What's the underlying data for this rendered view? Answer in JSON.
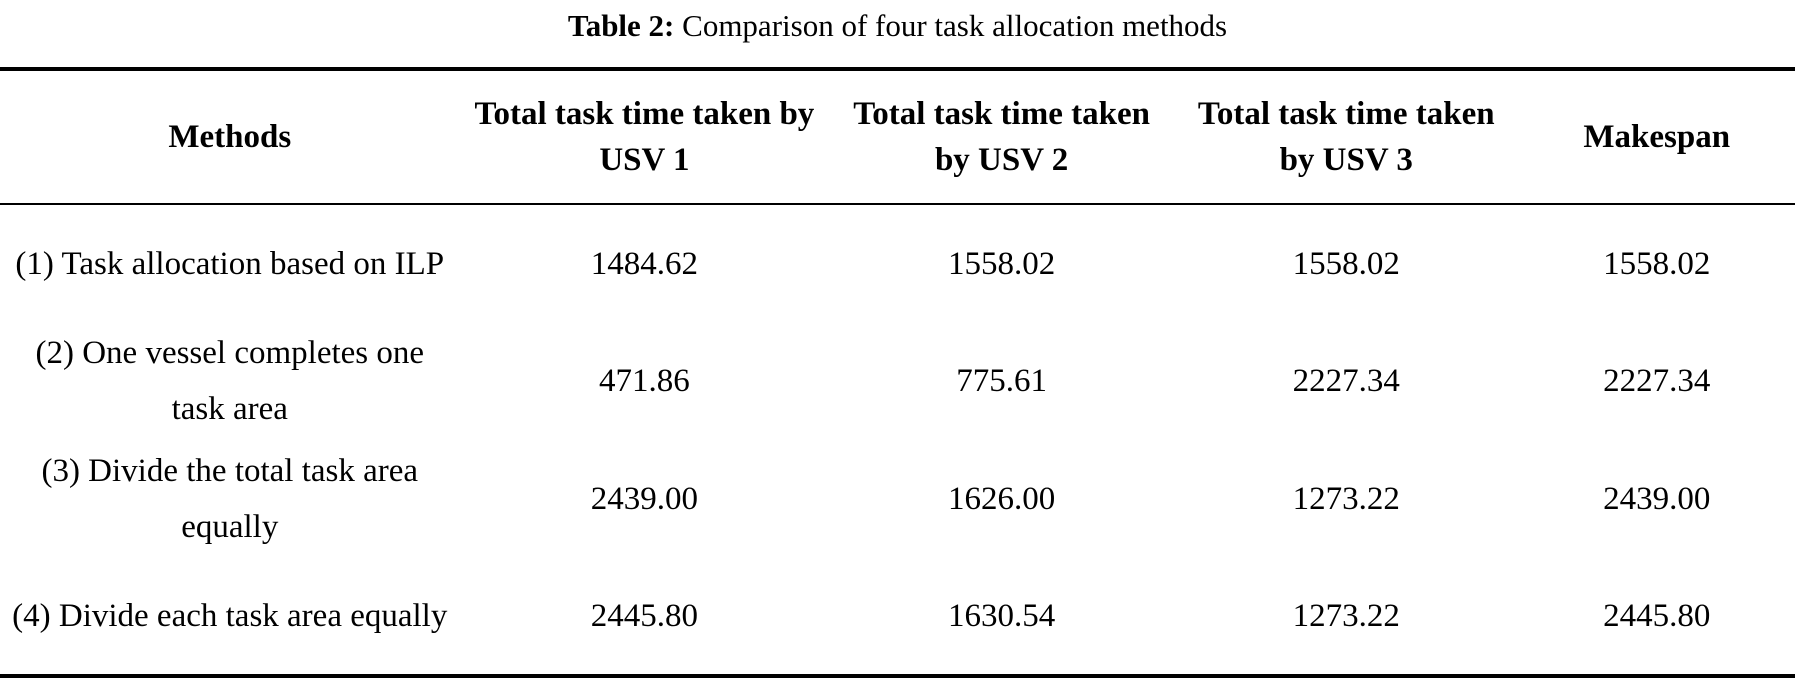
{
  "caption": {
    "label": "Table 2:",
    "text": "Comparison of four task allocation methods"
  },
  "table": {
    "columns": [
      "Methods",
      "Total task time taken by USV 1",
      "Total task time taken by USV 2",
      "Total task time taken by USV 3",
      "Makespan"
    ],
    "rows": [
      {
        "method": "(1) Task allocation based on ILP",
        "usv1": "1484.62",
        "usv2": "1558.02",
        "usv3": "1558.02",
        "makespan": "1558.02"
      },
      {
        "method": "(2) One vessel completes one task area",
        "usv1": "471.86",
        "usv2": "775.61",
        "usv3": "2227.34",
        "makespan": "2227.34"
      },
      {
        "method": "(3) Divide the total task area equally",
        "usv1": "2439.00",
        "usv2": "1626.00",
        "usv3": "1273.22",
        "makespan": "2439.00"
      },
      {
        "method": "(4) Divide each task area equally",
        "usv1": "2445.80",
        "usv2": "1630.54",
        "usv3": "1273.22",
        "makespan": "2445.80"
      }
    ]
  },
  "chart_data": {
    "type": "table",
    "title": "Table 2: Comparison of four task allocation methods",
    "columns": [
      "Methods",
      "Total task time taken by USV 1",
      "Total task time taken by USV 2",
      "Total task time taken by USV 3",
      "Makespan"
    ],
    "rows": [
      [
        "(1) Task allocation based on ILP",
        1484.62,
        1558.02,
        1558.02,
        1558.02
      ],
      [
        "(2) One vessel completes one task area",
        471.86,
        775.61,
        2227.34,
        2227.34
      ],
      [
        "(3) Divide the total task area equally",
        2439.0,
        1626.0,
        1273.22,
        2439.0
      ],
      [
        "(4) Divide each task area equally",
        2445.8,
        1630.54,
        1273.22,
        2445.8
      ]
    ]
  },
  "colors": {
    "text": "#000000",
    "background": "#ffffff",
    "rule": "#000000"
  }
}
